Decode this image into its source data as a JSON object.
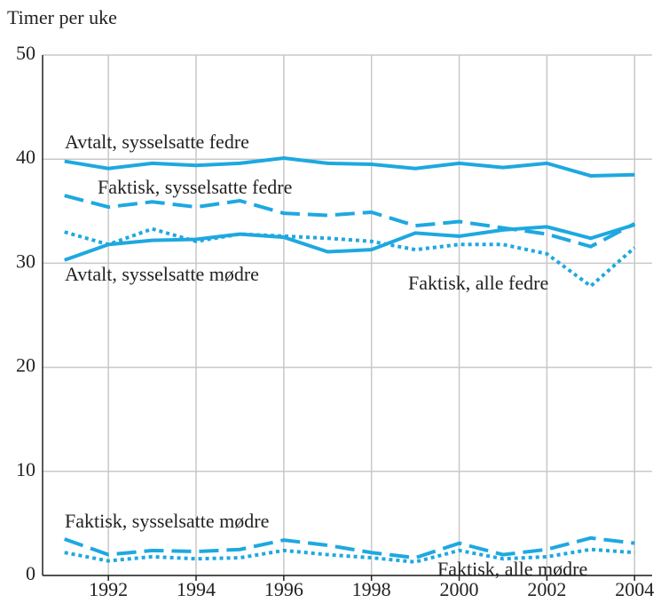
{
  "chart_data": {
    "type": "line",
    "y_label": "Timer per uke",
    "x": [
      1991,
      1992,
      1993,
      1994,
      1995,
      1996,
      1997,
      1998,
      1999,
      2000,
      2001,
      2002,
      2003,
      2004
    ],
    "xlim": [
      1990.5,
      2004.4
    ],
    "xticks": [
      1992,
      1994,
      1996,
      1998,
      2000,
      2002,
      2004
    ],
    "ylim": [
      0,
      50
    ],
    "yticks": [
      0,
      10,
      20,
      30,
      40,
      50
    ],
    "grid": true,
    "series": [
      {
        "name": "Avtalt, sysselsatte fedre",
        "color": "#1ea8e0",
        "style": "solid",
        "values": [
          39.8,
          39.1,
          39.6,
          39.4,
          39.6,
          40.1,
          39.6,
          39.5,
          39.1,
          39.6,
          39.2,
          39.6,
          38.4,
          38.5
        ]
      },
      {
        "name": "Faktisk, sysselsatte fedre",
        "color": "#1ea8e0",
        "style": "dashed",
        "values": [
          36.5,
          35.4,
          35.9,
          35.4,
          36.0,
          34.8,
          34.6,
          34.9,
          33.6,
          34.0,
          33.4,
          32.8,
          31.6,
          33.8
        ]
      },
      {
        "name": "Avtalt, sysselsatte mødre",
        "color": "#1ea8e0",
        "style": "solid",
        "values": [
          30.3,
          31.8,
          32.2,
          32.3,
          32.8,
          32.5,
          31.1,
          31.3,
          32.9,
          32.6,
          33.2,
          33.5,
          32.4,
          33.7
        ]
      },
      {
        "name": "Faktisk, alle fedre",
        "color": "#1ea8e0",
        "style": "dotted",
        "values": [
          33.0,
          31.8,
          33.3,
          32.1,
          32.8,
          32.6,
          32.4,
          32.1,
          31.3,
          31.8,
          31.8,
          30.9,
          27.8,
          31.5
        ]
      },
      {
        "name": "Faktisk, sysselsatte mødre",
        "color": "#1ea8e0",
        "style": "dashed",
        "values": [
          3.5,
          2.0,
          2.4,
          2.3,
          2.5,
          3.4,
          2.9,
          2.2,
          1.7,
          3.1,
          2.0,
          2.5,
          3.6,
          3.1
        ]
      },
      {
        "name": "Faktisk, alle mødre",
        "color": "#1ea8e0",
        "style": "dotted",
        "values": [
          2.2,
          1.4,
          1.8,
          1.6,
          1.7,
          2.4,
          2.0,
          1.7,
          1.3,
          2.4,
          1.6,
          1.8,
          2.5,
          2.2
        ]
      }
    ]
  }
}
